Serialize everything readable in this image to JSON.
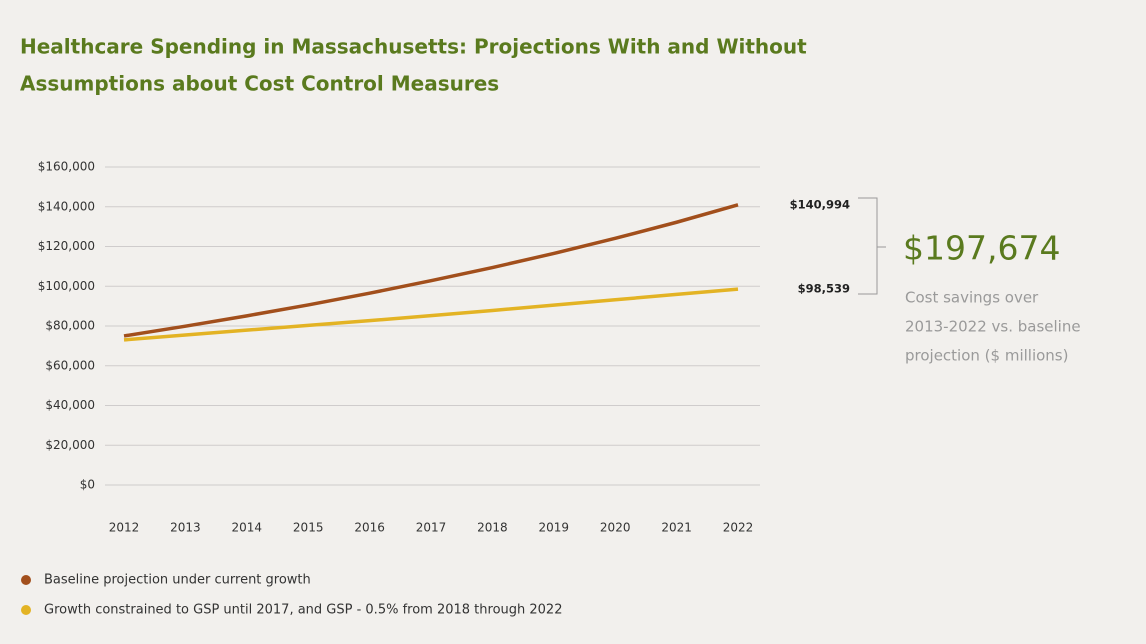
{
  "chart_data": {
    "type": "line",
    "title": [
      "Healthcare Spending in Massachusetts: Projections With and Without",
      "Assumptions about Cost Control Measures"
    ],
    "categories": [
      "2012",
      "2013",
      "2014",
      "2015",
      "2016",
      "2017",
      "2018",
      "2019",
      "2020",
      "2021",
      "2022"
    ],
    "series": [
      {
        "name": "Baseline projection under current growth",
        "color": "#a24f1c",
        "values": [
          75000,
          79900,
          85100,
          90600,
          96500,
          102800,
          109400,
          116500,
          124100,
          132200,
          140994
        ],
        "value_labels": [
          null,
          null,
          null,
          null,
          null,
          null,
          null,
          null,
          null,
          null,
          "$140,994"
        ]
      },
      {
        "name": "Growth constrained to GSP until 2017, and GSP - 0.5% from 2018 through 2022",
        "color": "#e3b324",
        "values": [
          73000,
          75500,
          77900,
          80300,
          82700,
          85200,
          87800,
          90500,
          93200,
          95900,
          98539
        ],
        "value_labels": [
          null,
          null,
          null,
          null,
          null,
          null,
          null,
          null,
          null,
          null,
          "$98,539"
        ]
      }
    ],
    "ylim": [
      0,
      160000
    ],
    "yticks": [
      {
        "value": 0,
        "label": "$0"
      },
      {
        "value": 20000,
        "label": "$20,000"
      },
      {
        "value": 40000,
        "label": "$40,000"
      },
      {
        "value": 60000,
        "label": "$60,000"
      },
      {
        "value": 80000,
        "label": "$80,000"
      },
      {
        "value": 100000,
        "label": "$100,000"
      },
      {
        "value": 120000,
        "label": "$120,000"
      },
      {
        "value": 140000,
        "label": "$140,000"
      },
      {
        "value": 160000,
        "label": "$160,000"
      }
    ],
    "grid": true,
    "annotation": {
      "label": "$197,674",
      "text": [
        "Cost savings over",
        "2013-2022 vs. baseline",
        "projection ($ millions)"
      ]
    }
  }
}
